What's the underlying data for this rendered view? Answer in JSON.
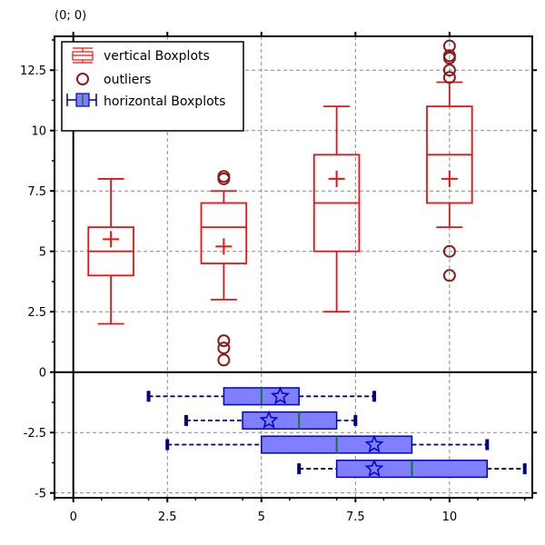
{
  "coord_readout": "(0; 0)",
  "colors": {
    "vertical": "#ee1111",
    "outlier": "#8b1a1a",
    "horizontal_fill": "#7f7fff",
    "horizontal_edge": "#0000cc",
    "whisker_dark": "#000080",
    "median_green": "#117733",
    "grid": "#888888"
  },
  "chart_data": {
    "type": "boxplot",
    "xlim": [
      -0.5,
      12.2
    ],
    "ylim": [
      -5.2,
      13.9
    ],
    "grid": true,
    "legend_position": "top-left",
    "xticks": [
      {
        "value": 0,
        "label": "0"
      },
      {
        "value": 2.5,
        "label": "2.5"
      },
      {
        "value": 5,
        "label": "5"
      },
      {
        "value": 7.5,
        "label": "7.5"
      },
      {
        "value": 10,
        "label": "10"
      }
    ],
    "yticks": [
      {
        "value": 12.5,
        "label": "12.5"
      },
      {
        "value": 10,
        "label": "10"
      },
      {
        "value": 7.5,
        "label": "7.5"
      },
      {
        "value": 5,
        "label": "5"
      },
      {
        "value": 2.5,
        "label": "2.5"
      },
      {
        "value": 0,
        "label": "0"
      },
      {
        "value": -2.5,
        "label": "-2.5"
      },
      {
        "value": -5,
        "label": "-5"
      }
    ],
    "legend": [
      {
        "key": "vertical",
        "label": "vertical Boxplots"
      },
      {
        "key": "outliers",
        "label": "outliers"
      },
      {
        "key": "horizontal",
        "label": "horizontal Boxplots"
      }
    ],
    "vertical_boxplots": [
      {
        "pos": 1,
        "min": 2,
        "q1": 4,
        "median": 5,
        "q3": 6,
        "max": 8,
        "mean": 5.5,
        "outliers": []
      },
      {
        "pos": 4,
        "min": 3,
        "q1": 4.5,
        "median": 6,
        "q3": 7,
        "max": 7.5,
        "mean": 5.2,
        "outliers": [
          8,
          8.1,
          1.3,
          1,
          0.5
        ]
      },
      {
        "pos": 7,
        "min": 2.5,
        "q1": 5,
        "median": 7,
        "q3": 9,
        "max": 11,
        "mean": 8,
        "outliers": []
      },
      {
        "pos": 10,
        "min": 6,
        "q1": 7,
        "median": 9,
        "q3": 11,
        "max": 12,
        "mean": 8,
        "outliers": [
          13.5,
          13.1,
          13,
          12.5,
          12.2,
          5,
          4
        ]
      }
    ],
    "horizontal_boxplots": [
      {
        "pos": -1,
        "min": 2,
        "q1": 4,
        "median": 5,
        "q3": 6,
        "max": 8,
        "mean": 5.5
      },
      {
        "pos": -2,
        "min": 3,
        "q1": 4.5,
        "median": 6,
        "q3": 7,
        "max": 7.5,
        "mean": 5.2
      },
      {
        "pos": -3,
        "min": 2.5,
        "q1": 5,
        "median": 7,
        "q3": 9,
        "max": 11,
        "mean": 8
      },
      {
        "pos": -4,
        "min": 6,
        "q1": 7,
        "median": 9,
        "q3": 11,
        "max": 12,
        "mean": 8
      }
    ]
  }
}
